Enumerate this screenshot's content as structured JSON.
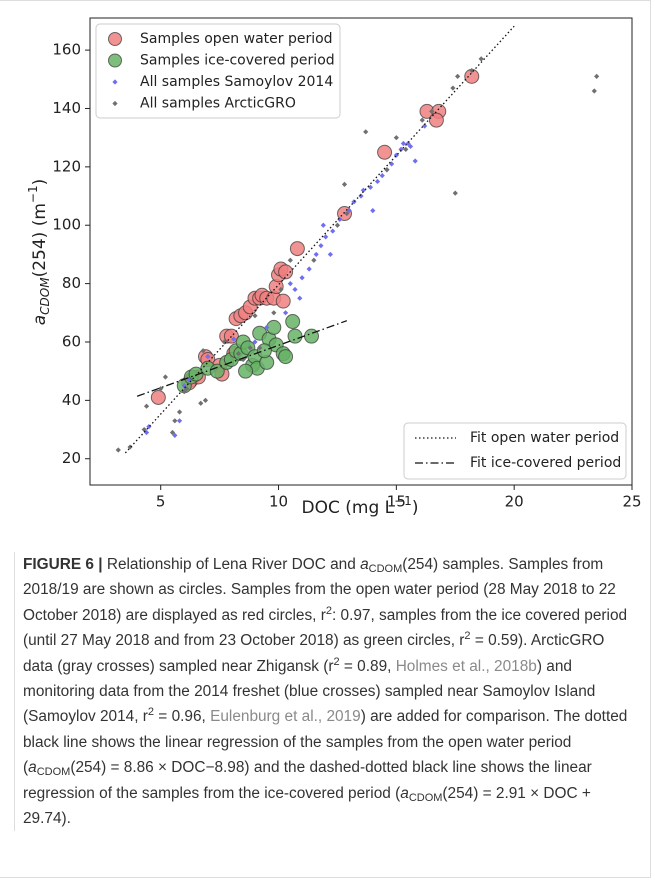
{
  "chart_data": {
    "type": "scatter",
    "x_label_parts": [
      "DOC (mg L",
      "−1",
      ")"
    ],
    "y_label_parts": [
      "a",
      "CDOM",
      "(254) (m",
      "−1",
      ")"
    ],
    "xlim": [
      2,
      25
    ],
    "ylim": [
      11,
      171
    ],
    "xticks": [
      5,
      10,
      15,
      20,
      25
    ],
    "yticks": [
      20,
      40,
      60,
      80,
      100,
      120,
      140,
      160
    ],
    "legend": "upper left",
    "fit_legend": "lower right",
    "series": [
      {
        "name": "Samples open water period",
        "color": "#f08080",
        "marker": "circle",
        "x": [
          4.9,
          6.3,
          6.6,
          6.9,
          7.0,
          7.5,
          7.8,
          8.0,
          8.2,
          8.4,
          8.6,
          8.8,
          9.0,
          9.2,
          9.3,
          9.5,
          9.8,
          9.9,
          10.0,
          10.1,
          10.2,
          10.3,
          10.8,
          12.8,
          14.5,
          16.3,
          16.8,
          16.7,
          18.2,
          8.1,
          7.6,
          6.2
        ],
        "y": [
          41,
          47,
          48,
          55,
          54,
          52,
          62,
          62,
          68,
          69,
          70,
          72,
          75,
          75,
          76,
          75,
          75,
          79,
          83,
          85,
          74,
          84,
          92,
          104,
          125,
          139,
          139,
          136,
          151,
          56,
          49,
          46
        ]
      },
      {
        "name": "Samples ice-covered period",
        "color": "#66b366",
        "marker": "circle",
        "x": [
          6.0,
          6.3,
          6.5,
          7.0,
          7.4,
          7.8,
          8.0,
          8.2,
          8.4,
          8.5,
          8.7,
          8.9,
          9.0,
          9.1,
          9.2,
          9.5,
          9.6,
          9.8,
          9.9,
          10.2,
          10.3,
          10.6,
          10.7,
          11.4,
          8.6,
          9.4
        ],
        "y": [
          45,
          48,
          49,
          51,
          50,
          53,
          54,
          57,
          56,
          60,
          58,
          52,
          55,
          51,
          63,
          53,
          61,
          65,
          59,
          56,
          55,
          67,
          62,
          62,
          50,
          57
        ]
      },
      {
        "name": "All samples Samoylov 2014",
        "color": "#6f6ff0",
        "marker": "diamond",
        "x": [
          4.4,
          4.5,
          5.6,
          5.8,
          6.0,
          6.2,
          7.0,
          8.1,
          9.0,
          9.5,
          10.3,
          10.5,
          10.7,
          11.0,
          11.3,
          11.6,
          11.8,
          12.0,
          12.3,
          12.6,
          13.0,
          13.2,
          13.6,
          13.9,
          14.2,
          14.4,
          14.6,
          14.8,
          15.0,
          15.2,
          15.3,
          15.5,
          15.6,
          16.2,
          15.8,
          14.0,
          13.5,
          12.2,
          11.9,
          10.9
        ],
        "y": [
          29,
          31,
          28,
          33,
          45,
          47,
          55,
          61,
          60,
          65,
          70,
          80,
          78,
          82,
          85,
          90,
          93,
          96,
          98,
          102,
          105,
          108,
          112,
          113,
          115,
          117,
          119,
          121,
          124,
          126,
          128,
          128,
          127,
          134,
          122,
          105,
          110,
          90,
          100,
          75
        ]
      },
      {
        "name": "All samples ArcticGRO",
        "color": "#707070",
        "marker": "diamond",
        "x": [
          3.2,
          4.3,
          4.4,
          5.0,
          5.2,
          5.6,
          5.8,
          6.0,
          6.1,
          6.7,
          6.9,
          6.8,
          7.7,
          8.3,
          8.8,
          9.2,
          8.5,
          9.8,
          9.0,
          10.1,
          10.5,
          11.5,
          12.5,
          12.9,
          12.8,
          13.7,
          14.6,
          15.0,
          15.4,
          16.1,
          16.5,
          17.4,
          17.6,
          17.5,
          18.2,
          18.6,
          23.4,
          23.5,
          3.7,
          5.5
        ],
        "y": [
          23,
          30,
          38,
          44,
          48,
          33,
          36,
          43,
          44,
          39,
          40,
          57,
          60,
          56,
          58,
          58,
          54,
          70,
          69,
          78,
          88,
          88,
          100,
          104,
          114,
          132,
          119,
          130,
          126,
          136,
          139,
          147,
          151,
          111,
          153,
          157,
          146,
          151,
          24,
          29
        ]
      }
    ],
    "fits": [
      {
        "name": "Fit open water period",
        "style": "dotted",
        "x": [
          3.5,
          20
        ],
        "y": [
          22.0,
          168.2
        ]
      },
      {
        "name": "Fit ice-covered period",
        "style": "dashdot",
        "x": [
          4,
          12.9
        ],
        "y": [
          41.4,
          67.3
        ]
      }
    ]
  },
  "caption": {
    "runs": [
      "FIGURE 6 |",
      " Relationship of Lena River DOC and ",
      "a",
      "CDOM",
      "(254) samples. Samples from 2018/19 are shown as circles. Samples from the open water period (28 May 2018 to 22 October 2018) are displayed as red circles, r",
      "2",
      ": 0.97, samples from the ice covered period (until 27 May 2018 and from 23 October 2018) as green circles, r",
      "2",
      " = 0.59). ArcticGRO data (gray crosses) sampled near Zhigansk (r",
      "2",
      " = 0.89, ",
      "Holmes et al., 2018b",
      ") and monitoring data from the 2014 freshet (blue crosses) sampled near Samoylov Island (Samoylov 2014, r",
      "2",
      " = 0.96, ",
      "Eulenburg et al., 2019",
      ") are added for comparison. The dotted black line shows the linear regression of the samples from the open water period (",
      "a",
      "CDOM",
      "(254) = 8.86 × DOC−8.98) and the dashed-dotted black line shows the linear regression of the samples from the ice-covered period (",
      "a",
      "CDOM",
      "(254) = 2.91 × DOC + 29.74)."
    ]
  }
}
